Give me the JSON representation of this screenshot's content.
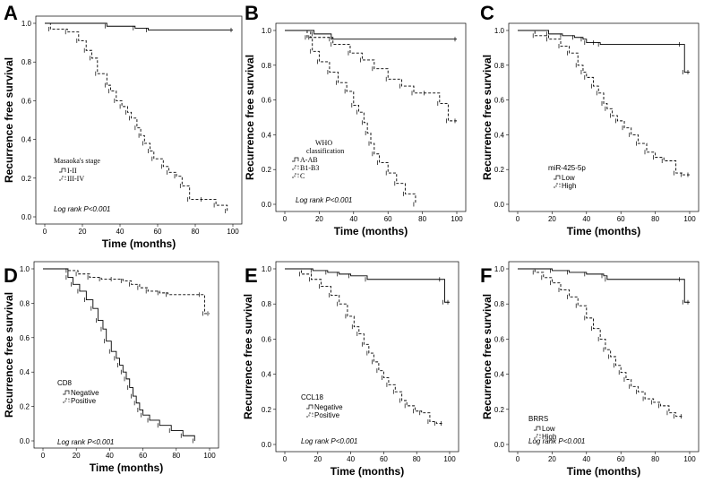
{
  "chart_data": [
    {
      "panel": "A",
      "type": "line",
      "title": "",
      "xlabel": "Time (months)",
      "ylabel": "Recurrence free survival",
      "xlim": [
        0,
        100
      ],
      "ylim": [
        0,
        1
      ],
      "xticks": [
        "0",
        "20",
        "40",
        "60",
        "80",
        "100"
      ],
      "yticks": [
        "0.0",
        "0.2",
        "0.4",
        "0.6",
        "0.8",
        "1.0"
      ],
      "legend_title": "Masaoka's stage",
      "annotation": "Log rank P<0.001",
      "series": [
        {
          "name": "I-II",
          "style": "solid",
          "x": [
            0,
            33,
            48,
            55,
            100
          ],
          "y": [
            1.0,
            0.985,
            0.975,
            0.965,
            0.965
          ]
        },
        {
          "name": "III-IV",
          "style": "dashed",
          "x": [
            0,
            3,
            12,
            18,
            22,
            25,
            28,
            33,
            35,
            38,
            41,
            44,
            46,
            49,
            51,
            53,
            56,
            58,
            63,
            66,
            70,
            73,
            77,
            84,
            91,
            97
          ],
          "y": [
            1.0,
            0.97,
            0.955,
            0.91,
            0.86,
            0.82,
            0.74,
            0.68,
            0.65,
            0.6,
            0.57,
            0.54,
            0.51,
            0.46,
            0.42,
            0.38,
            0.34,
            0.3,
            0.26,
            0.23,
            0.21,
            0.16,
            0.09,
            0.09,
            0.06,
            0.03
          ]
        }
      ]
    },
    {
      "panel": "B",
      "type": "line",
      "title": "",
      "xlabel": "Time (months)",
      "ylabel": "Recurrence free survival",
      "xlim": [
        0,
        100
      ],
      "ylim": [
        0,
        1
      ],
      "xticks": [
        "0",
        "20",
        "40",
        "60",
        "80",
        "100"
      ],
      "yticks": [
        "0.0",
        "0.2",
        "0.4",
        "0.6",
        "0.8",
        "1.0"
      ],
      "legend_title_lines": [
        "WHO",
        "classification"
      ],
      "annotation": "Log rank P<0.001",
      "series": [
        {
          "name": "A-AB",
          "style": "solid",
          "x": [
            0,
            17,
            27,
            100
          ],
          "y": [
            1.0,
            0.98,
            0.95,
            0.95
          ]
        },
        {
          "name": "B1-B3",
          "style": "dashed",
          "x": [
            0,
            15,
            28,
            38,
            45,
            52,
            60,
            68,
            75,
            82,
            90,
            95,
            100
          ],
          "y": [
            1.0,
            0.96,
            0.92,
            0.87,
            0.83,
            0.78,
            0.72,
            0.68,
            0.64,
            0.64,
            0.58,
            0.48,
            0.48
          ]
        },
        {
          "name": "C",
          "style": "dashed",
          "x": [
            0,
            13,
            16,
            20,
            26,
            31,
            36,
            40,
            43,
            46,
            48,
            50,
            52,
            55,
            60,
            65,
            70,
            76
          ],
          "y": [
            1.0,
            0.96,
            0.88,
            0.82,
            0.76,
            0.7,
            0.65,
            0.57,
            0.53,
            0.47,
            0.41,
            0.35,
            0.29,
            0.24,
            0.18,
            0.12,
            0.06,
            0.0
          ]
        }
      ]
    },
    {
      "panel": "C",
      "type": "line",
      "title": "",
      "xlabel": "Time (months)",
      "ylabel": "Recurrence free survival",
      "xlim": [
        0,
        100
      ],
      "ylim": [
        0,
        1
      ],
      "xticks": [
        "0",
        "20",
        "40",
        "60",
        "80",
        "100"
      ],
      "yticks": [
        "0.0",
        "0.2",
        "0.4",
        "0.6",
        "0.8",
        "1.0"
      ],
      "legend_title": "miR-425-5p",
      "series": [
        {
          "name": "Low",
          "style": "solid",
          "x": [
            0,
            18,
            26,
            33,
            38,
            40,
            45,
            48,
            95,
            97,
            100
          ],
          "y": [
            1.0,
            0.98,
            0.97,
            0.96,
            0.95,
            0.93,
            0.93,
            0.92,
            0.92,
            0.76,
            0.76
          ]
        },
        {
          "name": "High",
          "style": "dashed",
          "x": [
            0,
            10,
            18,
            25,
            30,
            35,
            38,
            40,
            44,
            47,
            50,
            52,
            55,
            58,
            62,
            66,
            70,
            75,
            80,
            85,
            92,
            96,
            100
          ],
          "y": [
            1.0,
            0.97,
            0.95,
            0.91,
            0.87,
            0.8,
            0.76,
            0.73,
            0.68,
            0.64,
            0.58,
            0.55,
            0.51,
            0.48,
            0.44,
            0.4,
            0.35,
            0.3,
            0.27,
            0.25,
            0.18,
            0.17,
            0.17
          ]
        }
      ]
    },
    {
      "panel": "D",
      "type": "line",
      "title": "",
      "xlabel": "Time (months)",
      "ylabel": "Recurrence free survival",
      "xlim": [
        0,
        100
      ],
      "ylim": [
        0,
        1
      ],
      "xticks": [
        "0",
        "20",
        "40",
        "60",
        "80",
        "100"
      ],
      "yticks": [
        "0.0",
        "0.2",
        "0.4",
        "0.6",
        "0.8",
        "1.0"
      ],
      "legend_title": "CD8",
      "annotation": "Log rank P<0.001",
      "series": [
        {
          "name": "Negative",
          "style": "solid",
          "x": [
            0,
            15,
            18,
            22,
            26,
            30,
            33,
            36,
            38,
            41,
            44,
            46,
            48,
            50,
            52,
            54,
            56,
            58,
            60,
            64,
            70,
            77,
            84,
            91
          ],
          "y": [
            1.0,
            0.95,
            0.91,
            0.87,
            0.82,
            0.77,
            0.7,
            0.65,
            0.58,
            0.52,
            0.48,
            0.44,
            0.4,
            0.36,
            0.31,
            0.26,
            0.22,
            0.18,
            0.15,
            0.12,
            0.09,
            0.06,
            0.03,
            0.0
          ]
        },
        {
          "name": "Positive",
          "style": "dashed",
          "x": [
            0,
            15,
            21,
            28,
            35,
            42,
            48,
            53,
            58,
            63,
            70,
            75,
            95,
            97,
            100
          ],
          "y": [
            1.0,
            0.99,
            0.97,
            0.95,
            0.94,
            0.94,
            0.93,
            0.91,
            0.89,
            0.87,
            0.86,
            0.85,
            0.85,
            0.74,
            0.74
          ]
        }
      ]
    },
    {
      "panel": "E",
      "type": "line",
      "title": "",
      "xlabel": "Time (months)",
      "ylabel": "Recurrence free survival",
      "xlim": [
        0,
        100
      ],
      "ylim": [
        0,
        1
      ],
      "xticks": [
        "0",
        "20",
        "40",
        "60",
        "80",
        "100"
      ],
      "yticks": [
        "0.0",
        "0.2",
        "0.4",
        "0.6",
        "0.8",
        "1.0"
      ],
      "legend_title": "CCL18",
      "annotation": "Log rank P<0.001",
      "series": [
        {
          "name": "Negative",
          "style": "solid",
          "x": [
            0,
            17,
            26,
            33,
            40,
            50,
            95,
            97,
            100
          ],
          "y": [
            1.0,
            0.99,
            0.98,
            0.97,
            0.96,
            0.94,
            0.94,
            0.81,
            0.81
          ]
        },
        {
          "name": "Positive",
          "style": "dashed",
          "x": [
            0,
            10,
            16,
            22,
            28,
            33,
            38,
            42,
            45,
            48,
            51,
            54,
            57,
            60,
            63,
            67,
            71,
            74,
            79,
            83,
            88,
            92,
            96
          ],
          "y": [
            1.0,
            0.97,
            0.94,
            0.9,
            0.85,
            0.8,
            0.73,
            0.67,
            0.63,
            0.57,
            0.52,
            0.47,
            0.42,
            0.38,
            0.34,
            0.3,
            0.25,
            0.22,
            0.19,
            0.18,
            0.13,
            0.12,
            0.12
          ]
        }
      ]
    },
    {
      "panel": "F",
      "type": "line",
      "title": "",
      "xlabel": "Time (months)",
      "ylabel": "Recurrence free survival",
      "xlim": [
        0,
        100
      ],
      "ylim": [
        0,
        1
      ],
      "xticks": [
        "0",
        "20",
        "40",
        "60",
        "80",
        "100"
      ],
      "yticks": [
        "0.0",
        "0.2",
        "0.4",
        "0.6",
        "0.8",
        "1.0"
      ],
      "legend_title": "BRRS",
      "annotation": "Log rank P<0.001",
      "series": [
        {
          "name": "Low",
          "style": "solid",
          "x": [
            0,
            20,
            30,
            40,
            50,
            52,
            95,
            97,
            100
          ],
          "y": [
            1.0,
            0.99,
            0.98,
            0.97,
            0.96,
            0.94,
            0.94,
            0.81,
            0.81
          ]
        },
        {
          "name": "High",
          "style": "dashed",
          "x": [
            0,
            10,
            15,
            20,
            25,
            30,
            35,
            40,
            44,
            48,
            51,
            54,
            57,
            60,
            63,
            66,
            70,
            74,
            79,
            83,
            88,
            92,
            96
          ],
          "y": [
            1.0,
            0.98,
            0.95,
            0.92,
            0.88,
            0.84,
            0.79,
            0.72,
            0.66,
            0.6,
            0.54,
            0.5,
            0.45,
            0.41,
            0.37,
            0.33,
            0.3,
            0.26,
            0.24,
            0.22,
            0.18,
            0.16,
            0.16
          ]
        }
      ]
    }
  ]
}
